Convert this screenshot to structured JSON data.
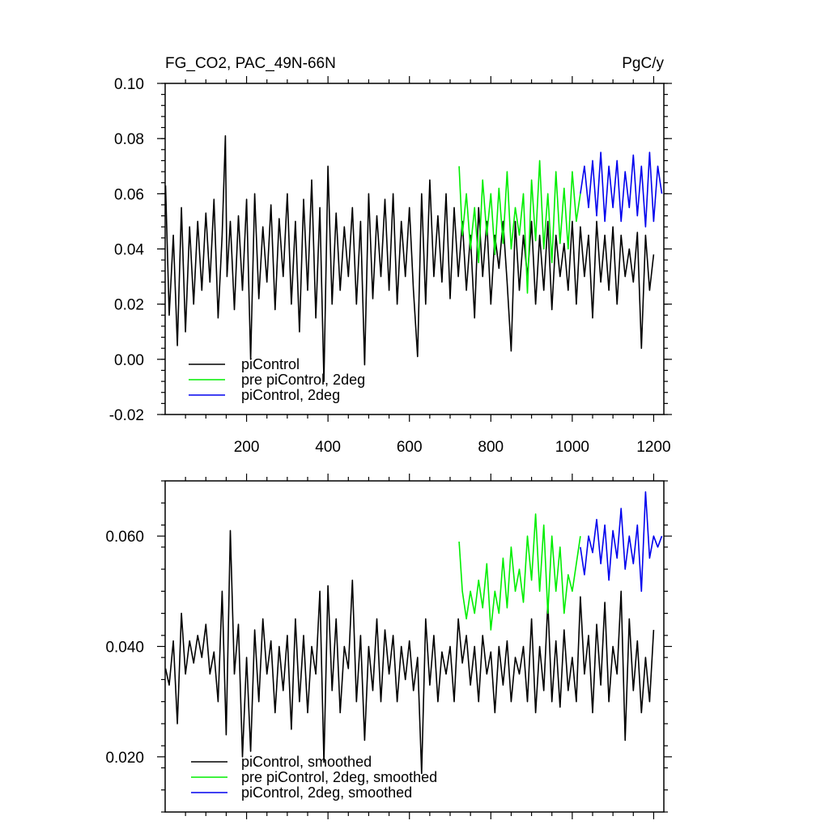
{
  "chart_data": [
    {
      "type": "line",
      "title": "FG_CO2, PAC_49N-66N",
      "units": "PgC/y",
      "xlabel": "",
      "ylabel": "",
      "xlim": [
        0,
        1225
      ],
      "ylim": [
        -0.02,
        0.1
      ],
      "xticks": [
        200,
        400,
        600,
        800,
        1000,
        1200
      ],
      "xtick_labels": [
        "200",
        "400",
        "600",
        "800",
        "1000",
        "1200"
      ],
      "yticks": [
        -0.02,
        0.0,
        0.02,
        0.04,
        0.06,
        0.08,
        0.1
      ],
      "ytick_labels": [
        "-0.02",
        "0.00",
        "0.02",
        "0.04",
        "0.06",
        "0.08",
        "0.10"
      ],
      "grid": false,
      "legend_position": "bottom-left",
      "series": [
        {
          "name": "piControl",
          "color": "#000000",
          "x": [
            1,
            10,
            20,
            30,
            40,
            50,
            60,
            70,
            80,
            90,
            100,
            110,
            120,
            130,
            140,
            148,
            152,
            160,
            170,
            180,
            190,
            200,
            210,
            220,
            230,
            240,
            250,
            260,
            270,
            280,
            290,
            300,
            310,
            320,
            330,
            340,
            350,
            360,
            370,
            380,
            390,
            400,
            410,
            420,
            430,
            440,
            450,
            460,
            470,
            480,
            490,
            500,
            510,
            520,
            530,
            540,
            550,
            560,
            570,
            580,
            590,
            600,
            610,
            620,
            630,
            640,
            650,
            660,
            670,
            680,
            690,
            700,
            710,
            720,
            730,
            740,
            750,
            760,
            770,
            780,
            790,
            800,
            810,
            820,
            830,
            840,
            850,
            860,
            870,
            880,
            890,
            900,
            910,
            920,
            930,
            940,
            950,
            960,
            970,
            980,
            990,
            1000,
            1010,
            1020,
            1030,
            1040,
            1050,
            1060,
            1070,
            1080,
            1090,
            1100,
            1110,
            1120,
            1130,
            1140,
            1150,
            1160,
            1170,
            1180,
            1190,
            1200
          ],
          "y": [
            0.063,
            0.016,
            0.045,
            0.005,
            0.055,
            0.01,
            0.048,
            0.02,
            0.05,
            0.025,
            0.053,
            0.028,
            0.058,
            0.015,
            0.045,
            0.081,
            0.03,
            0.05,
            0.018,
            0.052,
            0.025,
            0.058,
            0.0,
            0.06,
            0.022,
            0.048,
            0.028,
            0.056,
            0.018,
            0.051,
            0.03,
            0.06,
            0.02,
            0.05,
            0.01,
            0.058,
            0.025,
            0.065,
            0.015,
            0.055,
            -0.008,
            0.07,
            0.02,
            0.053,
            0.025,
            0.048,
            0.03,
            0.055,
            0.02,
            0.05,
            -0.002,
            0.06,
            0.022,
            0.052,
            0.03,
            0.058,
            0.025,
            0.06,
            0.02,
            0.05,
            0.03,
            0.055,
            0.025,
            0.001,
            0.06,
            0.02,
            0.065,
            0.03,
            0.052,
            0.028,
            0.06,
            0.022,
            0.055,
            0.03,
            0.05,
            0.025,
            0.045,
            0.015,
            0.055,
            0.03,
            0.05,
            0.02,
            0.045,
            0.033,
            0.05,
            0.028,
            0.003,
            0.05,
            0.025,
            0.045,
            0.03,
            0.05,
            0.02,
            0.045,
            0.025,
            0.05,
            0.018,
            0.045,
            0.03,
            0.042,
            0.025,
            0.05,
            0.02,
            0.048,
            0.03,
            0.045,
            0.015,
            0.05,
            0.028,
            0.045,
            0.025,
            0.048,
            0.02,
            0.045,
            0.03,
            0.04,
            0.028,
            0.046,
            0.004,
            0.045,
            0.025,
            0.038
          ]
        },
        {
          "name": "pre piControl, 2deg",
          "color": "#00ee00",
          "x": [
            722,
            730,
            740,
            750,
            760,
            770,
            780,
            790,
            800,
            810,
            820,
            830,
            840,
            850,
            860,
            870,
            880,
            890,
            900,
            910,
            920,
            930,
            940,
            950,
            960,
            970,
            980,
            990,
            1000,
            1010,
            1020
          ],
          "y": [
            0.07,
            0.045,
            0.06,
            0.04,
            0.055,
            0.035,
            0.065,
            0.045,
            0.06,
            0.038,
            0.062,
            0.042,
            0.068,
            0.04,
            0.055,
            0.045,
            0.06,
            0.024,
            0.065,
            0.043,
            0.072,
            0.04,
            0.06,
            0.035,
            0.068,
            0.042,
            0.062,
            0.04,
            0.068,
            0.05,
            0.06
          ]
        },
        {
          "name": "piControl, 2deg",
          "color": "#0000ee",
          "x": [
            1020,
            1030,
            1040,
            1050,
            1060,
            1070,
            1080,
            1090,
            1100,
            1110,
            1120,
            1130,
            1140,
            1150,
            1160,
            1170,
            1180,
            1190,
            1200,
            1210,
            1220
          ],
          "y": [
            0.06,
            0.07,
            0.055,
            0.072,
            0.052,
            0.075,
            0.05,
            0.07,
            0.055,
            0.072,
            0.05,
            0.068,
            0.055,
            0.074,
            0.052,
            0.07,
            0.048,
            0.075,
            0.05,
            0.07,
            0.06
          ]
        }
      ]
    },
    {
      "type": "line",
      "title": "",
      "xlabel": "",
      "ylabel": "",
      "xlim": [
        0,
        1225
      ],
      "ylim": [
        0.01,
        0.07
      ],
      "xticks": [
        200,
        400,
        600,
        800,
        1000,
        1200
      ],
      "yticks": [
        0.02,
        0.04,
        0.06
      ],
      "ytick_labels": [
        "0.020",
        "0.040",
        "0.060"
      ],
      "grid": false,
      "legend_position": "bottom-left",
      "series": [
        {
          "name": "piControl, smoothed",
          "color": "#000000",
          "x": [
            1,
            10,
            20,
            30,
            40,
            50,
            60,
            70,
            80,
            90,
            100,
            110,
            120,
            130,
            140,
            150,
            160,
            170,
            180,
            190,
            200,
            210,
            220,
            230,
            240,
            250,
            260,
            270,
            280,
            290,
            300,
            310,
            320,
            330,
            340,
            350,
            360,
            370,
            380,
            390,
            400,
            410,
            420,
            430,
            440,
            450,
            460,
            470,
            480,
            490,
            500,
            510,
            520,
            530,
            540,
            550,
            560,
            570,
            580,
            590,
            600,
            610,
            620,
            630,
            640,
            650,
            660,
            670,
            680,
            690,
            700,
            710,
            720,
            730,
            740,
            750,
            760,
            770,
            780,
            790,
            800,
            810,
            820,
            830,
            840,
            850,
            860,
            870,
            880,
            890,
            900,
            910,
            920,
            930,
            940,
            950,
            960,
            970,
            980,
            990,
            1000,
            1010,
            1020,
            1030,
            1040,
            1050,
            1060,
            1070,
            1080,
            1090,
            1100,
            1110,
            1120,
            1130,
            1140,
            1150,
            1160,
            1170,
            1180,
            1190,
            1200
          ],
          "y": [
            0.036,
            0.033,
            0.041,
            0.026,
            0.046,
            0.035,
            0.041,
            0.037,
            0.042,
            0.038,
            0.044,
            0.035,
            0.039,
            0.03,
            0.05,
            0.024,
            0.061,
            0.035,
            0.044,
            0.02,
            0.038,
            0.021,
            0.043,
            0.03,
            0.045,
            0.035,
            0.041,
            0.028,
            0.04,
            0.032,
            0.042,
            0.025,
            0.045,
            0.03,
            0.042,
            0.028,
            0.04,
            0.035,
            0.05,
            0.019,
            0.051,
            0.032,
            0.045,
            0.028,
            0.04,
            0.036,
            0.052,
            0.03,
            0.042,
            0.023,
            0.04,
            0.032,
            0.045,
            0.03,
            0.043,
            0.035,
            0.042,
            0.03,
            0.04,
            0.034,
            0.041,
            0.032,
            0.038,
            0.017,
            0.045,
            0.033,
            0.042,
            0.03,
            0.039,
            0.035,
            0.04,
            0.03,
            0.045,
            0.037,
            0.042,
            0.033,
            0.04,
            0.03,
            0.042,
            0.035,
            0.039,
            0.028,
            0.04,
            0.033,
            0.041,
            0.03,
            0.038,
            0.035,
            0.04,
            0.03,
            0.045,
            0.028,
            0.04,
            0.032,
            0.048,
            0.03,
            0.041,
            0.029,
            0.043,
            0.032,
            0.038,
            0.03,
            0.049,
            0.035,
            0.042,
            0.028,
            0.044,
            0.033,
            0.048,
            0.03,
            0.04,
            0.035,
            0.05,
            0.023,
            0.045,
            0.032,
            0.041,
            0.028,
            0.038,
            0.03,
            0.043
          ]
        },
        {
          "name": "pre piControl, 2deg, smoothed",
          "color": "#00ee00",
          "x": [
            722,
            730,
            740,
            750,
            760,
            770,
            780,
            790,
            800,
            810,
            820,
            830,
            840,
            850,
            860,
            870,
            880,
            890,
            900,
            910,
            920,
            930,
            940,
            950,
            960,
            970,
            980,
            990,
            1000,
            1010,
            1020
          ],
          "y": [
            0.059,
            0.05,
            0.045,
            0.05,
            0.046,
            0.052,
            0.047,
            0.055,
            0.043,
            0.05,
            0.046,
            0.056,
            0.047,
            0.058,
            0.05,
            0.054,
            0.048,
            0.06,
            0.052,
            0.064,
            0.05,
            0.062,
            0.046,
            0.06,
            0.05,
            0.058,
            0.046,
            0.053,
            0.05,
            0.055,
            0.06
          ]
        },
        {
          "name": "piControl, 2deg, smoothed",
          "color": "#0000ee",
          "x": [
            1020,
            1030,
            1040,
            1050,
            1060,
            1070,
            1080,
            1090,
            1100,
            1110,
            1120,
            1130,
            1140,
            1150,
            1160,
            1170,
            1180,
            1190,
            1200,
            1210,
            1220
          ],
          "y": [
            0.058,
            0.053,
            0.06,
            0.057,
            0.063,
            0.055,
            0.062,
            0.052,
            0.061,
            0.056,
            0.065,
            0.054,
            0.06,
            0.055,
            0.062,
            0.05,
            0.068,
            0.056,
            0.06,
            0.058,
            0.06
          ]
        }
      ]
    }
  ]
}
